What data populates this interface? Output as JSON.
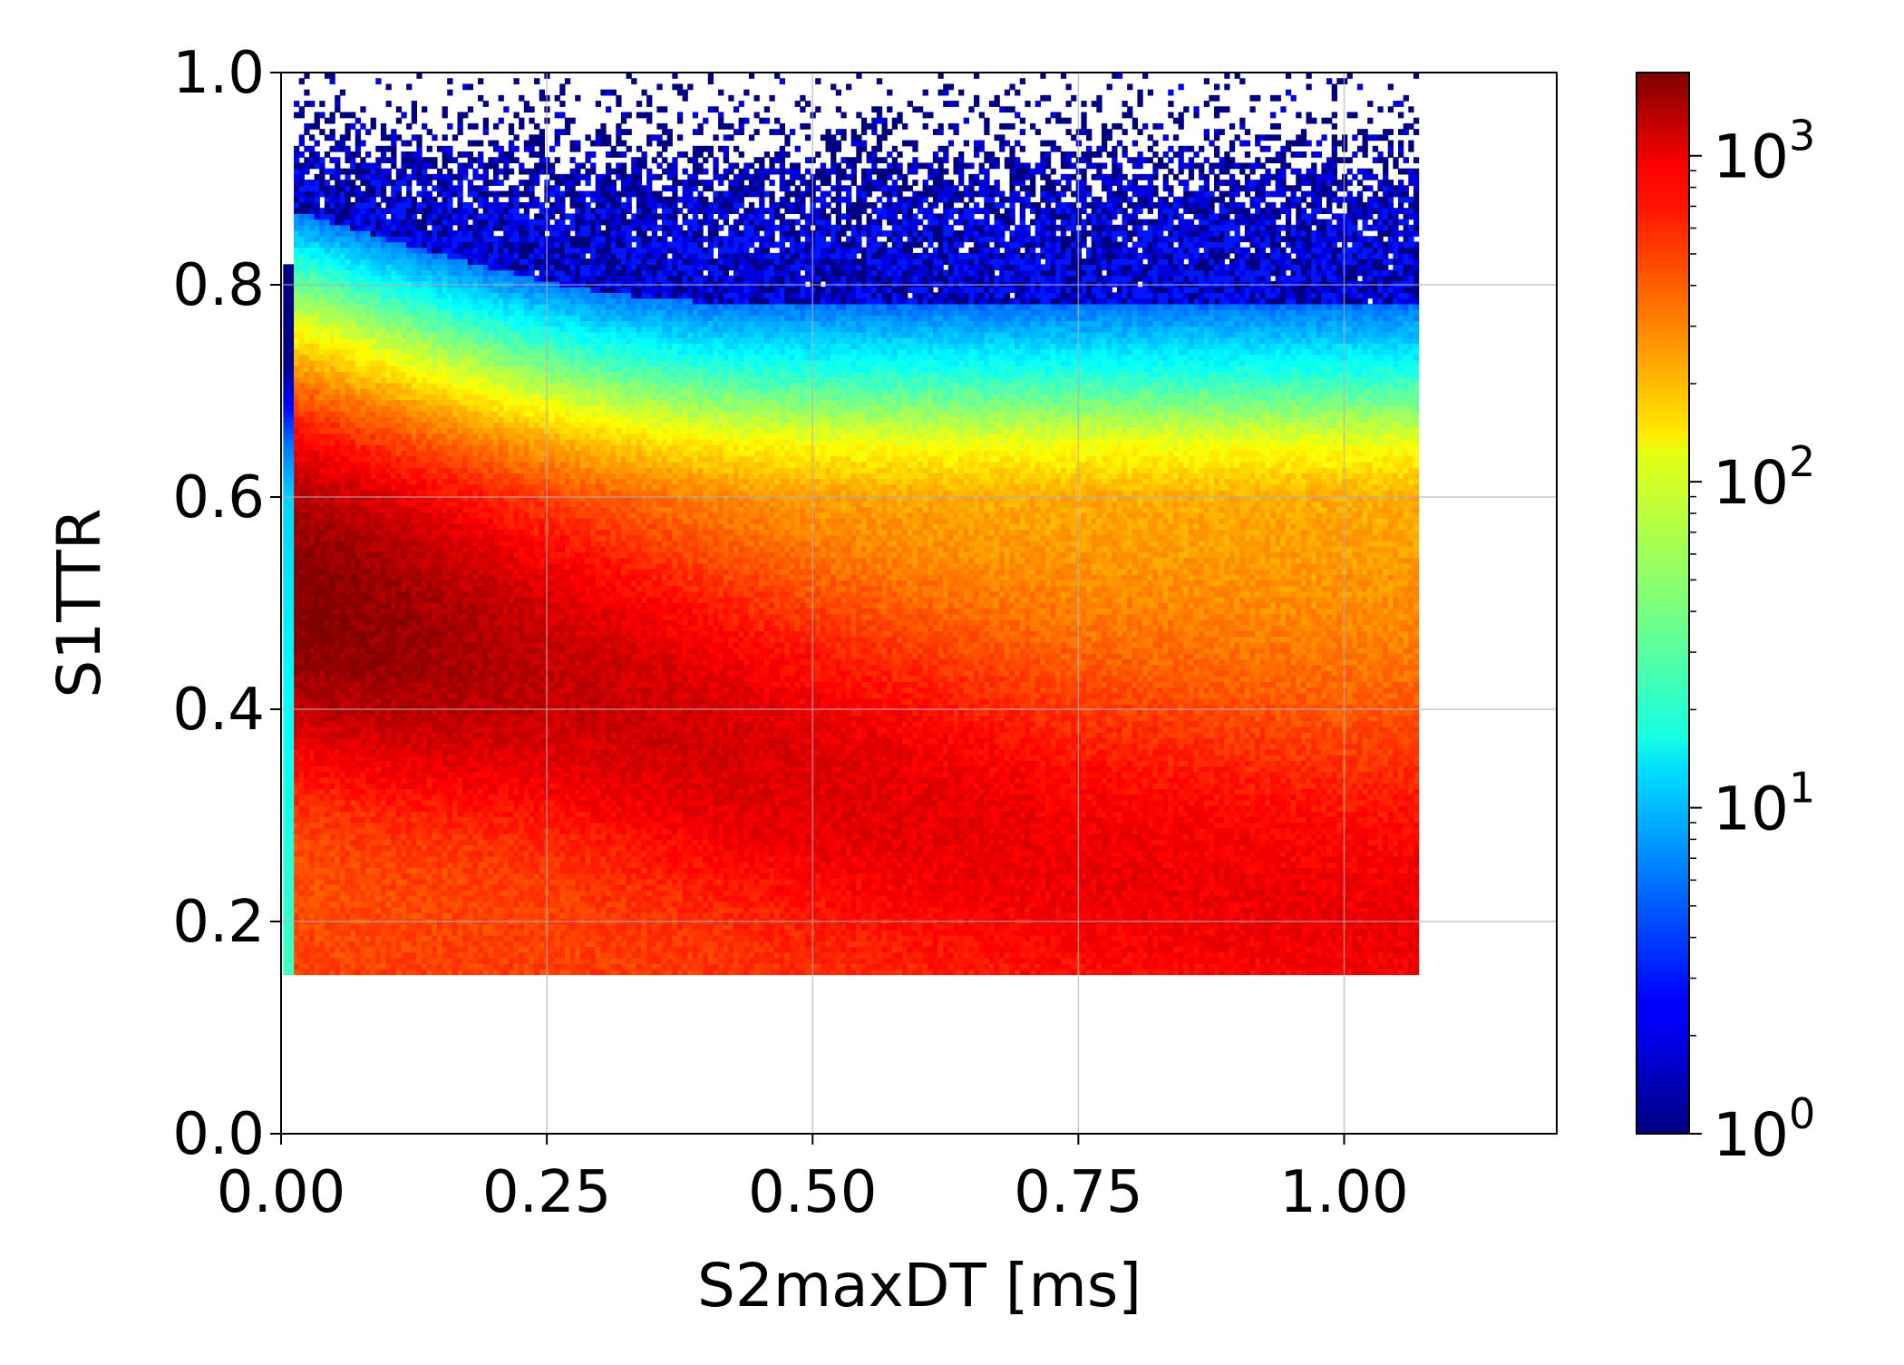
{
  "chart_data": {
    "type": "heatmap",
    "title": "",
    "xlabel": "S2maxDT [ms]",
    "ylabel": "S1TTR",
    "xlim": [
      0.0,
      1.2
    ],
    "ylim": [
      0.0,
      1.0
    ],
    "x_ticks": [
      "0.00",
      "0.25",
      "0.50",
      "0.75",
      "1.00"
    ],
    "x_tick_values": [
      0.0,
      0.25,
      0.5,
      0.75,
      1.0
    ],
    "y_ticks": [
      "0.0",
      "0.2",
      "0.4",
      "0.6",
      "0.8",
      "1.0"
    ],
    "y_tick_values": [
      0.0,
      0.2,
      0.4,
      0.6,
      0.8,
      1.0
    ],
    "grid": true,
    "colorbar": {
      "label": "",
      "scale": "log",
      "min": 1,
      "max": 1800,
      "colormap": "jet",
      "ticks": [
        {
          "value": 1,
          "base": "10",
          "exp": "0"
        },
        {
          "value": 10,
          "base": "10",
          "exp": "1"
        },
        {
          "value": 100,
          "base": "10",
          "exp": "2"
        },
        {
          "value": 1000,
          "base": "10",
          "exp": "3"
        }
      ]
    },
    "data_extent": {
      "x": [
        0.0,
        1.07
      ],
      "y": [
        0.15,
        1.0
      ]
    },
    "bins": {
      "nx": 220,
      "ny": 160
    },
    "peak_ridge": [
      {
        "x": 0.02,
        "y": 0.5,
        "count": 1800
      },
      {
        "x": 0.25,
        "y": 0.43,
        "count": 1100
      },
      {
        "x": 0.5,
        "y": 0.33,
        "count": 900
      },
      {
        "x": 0.75,
        "y": 0.25,
        "count": 800
      },
      {
        "x": 1.0,
        "y": 0.2,
        "count": 800
      }
    ],
    "band_levels": [
      {
        "y": 0.15,
        "count": 450
      },
      {
        "y": 0.6,
        "count": 200
      },
      {
        "y": 0.65,
        "count": 100
      },
      {
        "y": 0.72,
        "count": 20
      },
      {
        "y": 0.8,
        "count": 4
      },
      {
        "y": 0.9,
        "count": 1
      }
    ]
  }
}
